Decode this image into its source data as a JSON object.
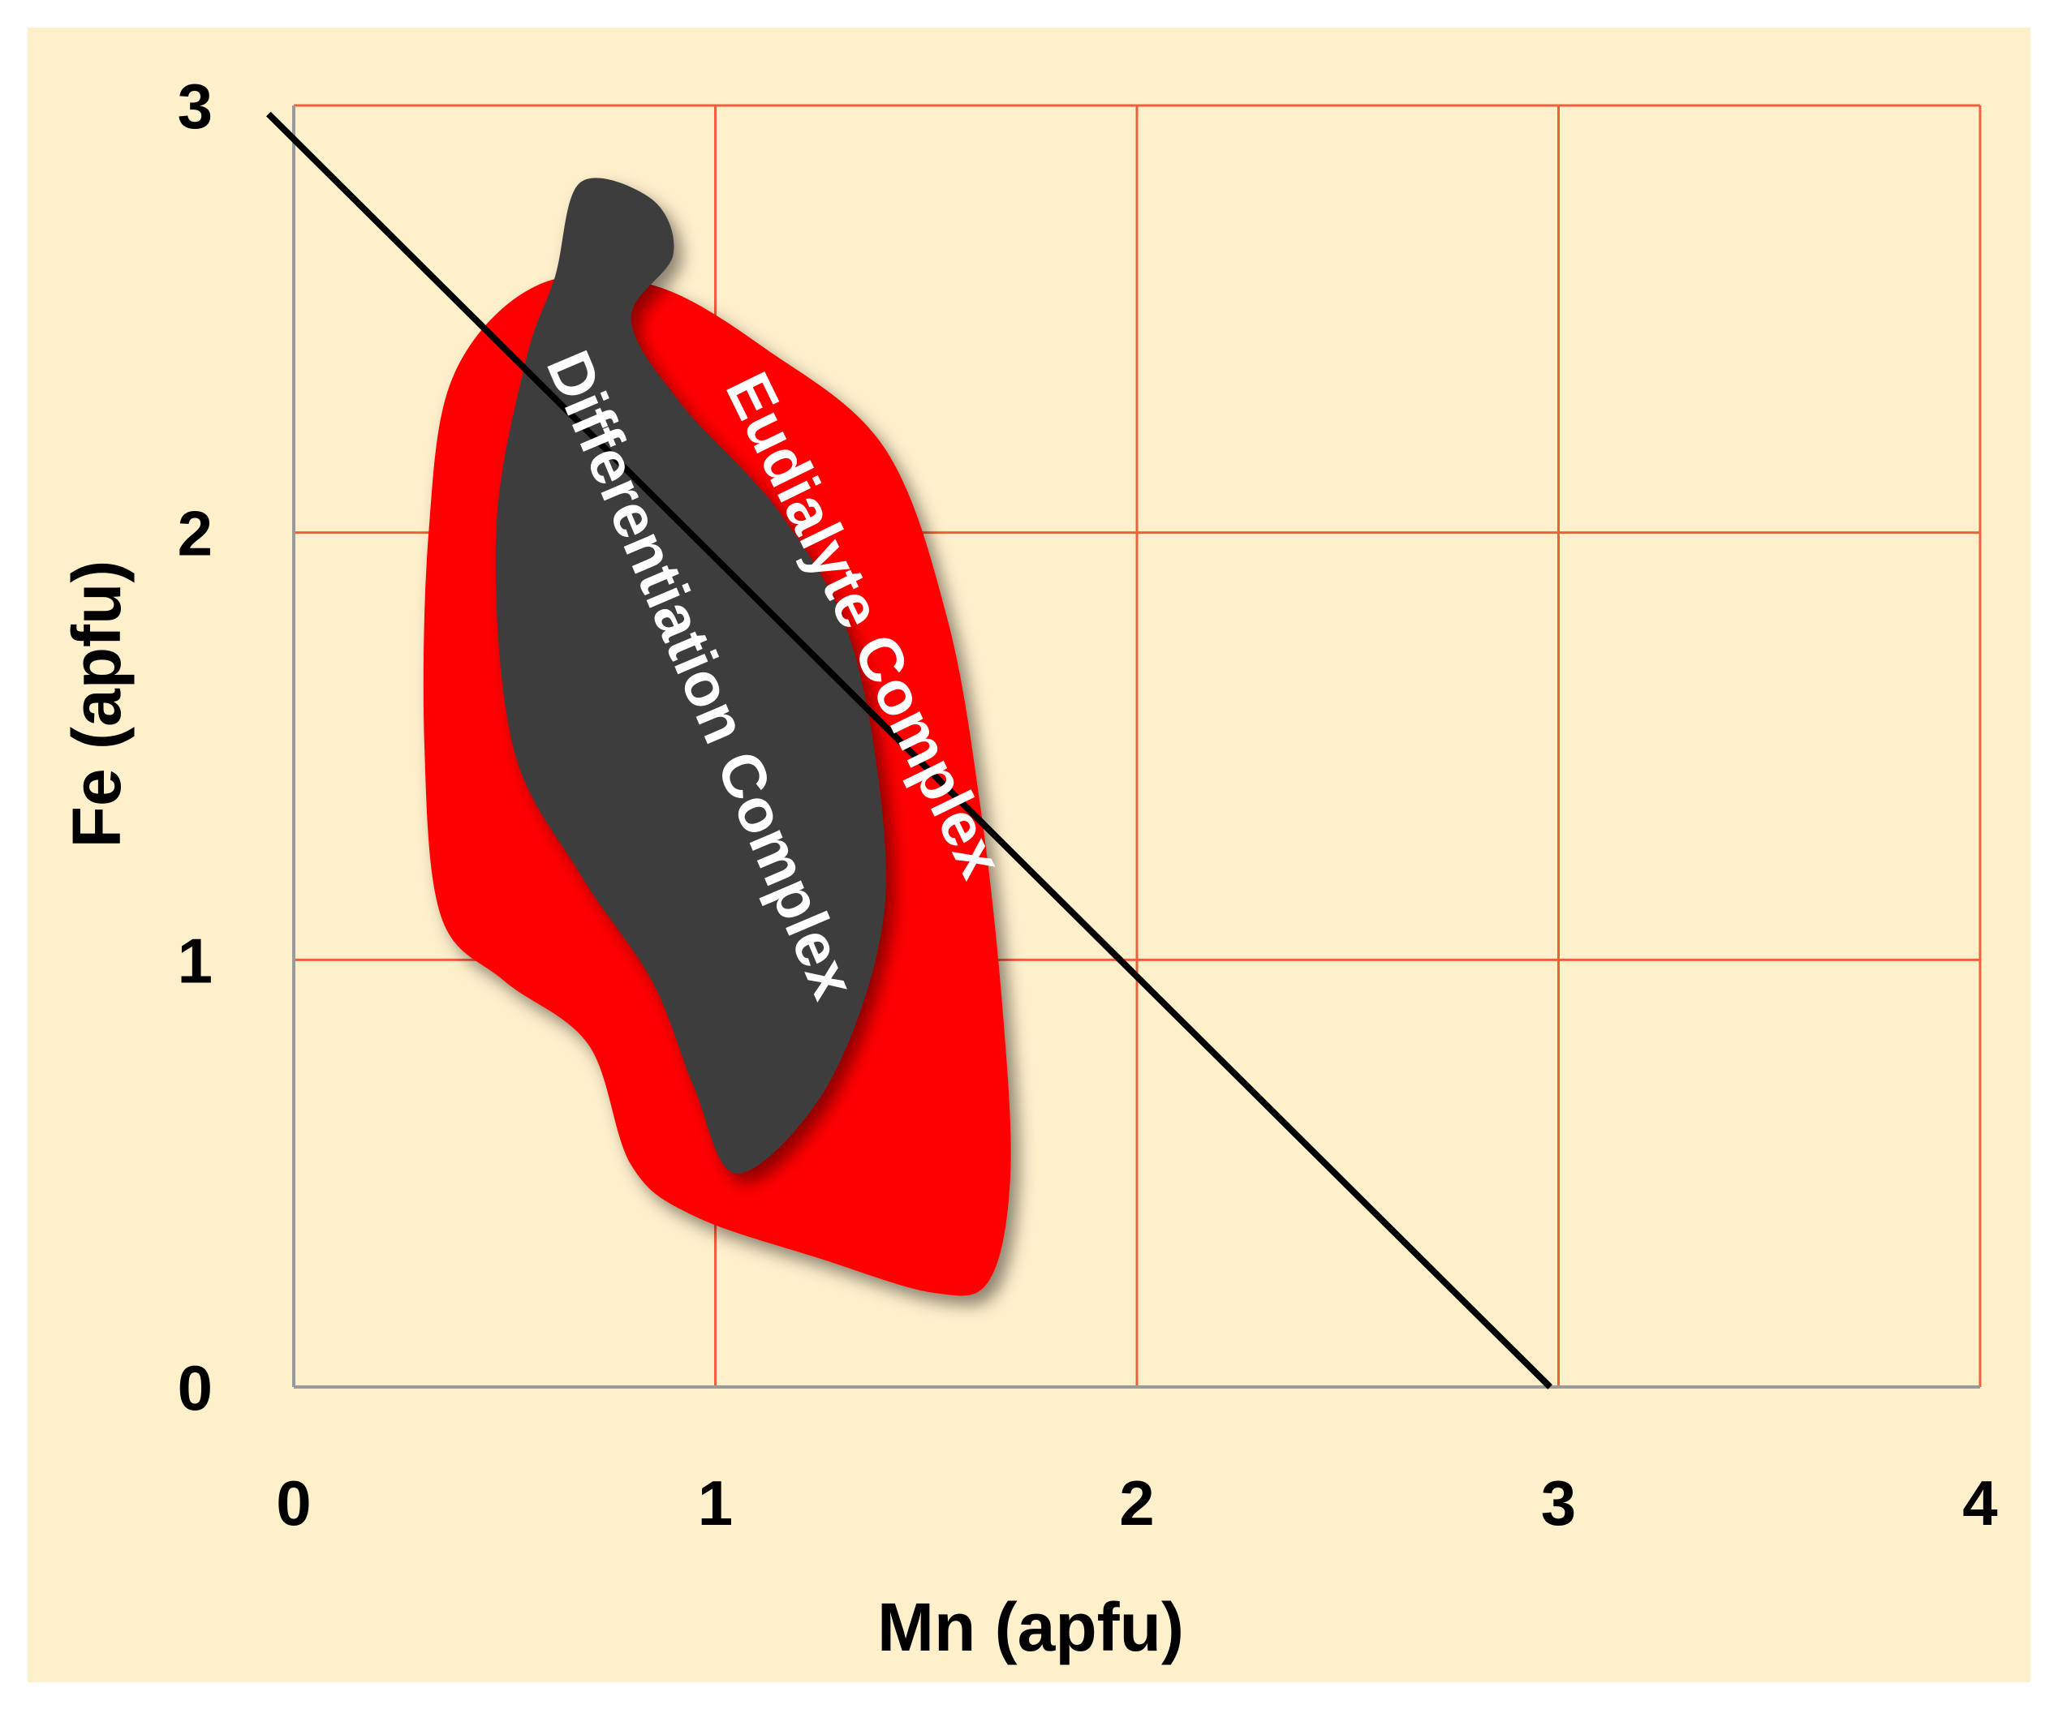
{
  "chart_data": {
    "type": "scatter",
    "title": "",
    "xlabel": "Mn (apfu)",
    "ylabel": "Fe (apfu)",
    "xlim": [
      0,
      4
    ],
    "ylim": [
      0,
      3
    ],
    "xticks": [
      "0",
      "1",
      "2",
      "3",
      "4"
    ],
    "yticks": [
      "0",
      "1",
      "2",
      "3"
    ],
    "grid": true,
    "legend": "none",
    "reference_line": {
      "x": [
        -0.06,
        2.98
      ],
      "y": [
        2.98,
        0
      ]
    },
    "regions": [
      {
        "label": "Eudialyte Complex",
        "color": "#ff0000",
        "outline_mn_fe": [
          [
            0.38,
            2.37
          ],
          [
            0.58,
            2.58
          ],
          [
            0.85,
            2.58
          ],
          [
            1.12,
            2.43
          ],
          [
            1.4,
            2.2
          ],
          [
            1.55,
            1.8
          ],
          [
            1.63,
            1.35
          ],
          [
            1.68,
            0.9
          ],
          [
            1.7,
            0.5
          ],
          [
            1.65,
            0.25
          ],
          [
            1.52,
            0.22
          ],
          [
            1.25,
            0.3
          ],
          [
            0.95,
            0.4
          ],
          [
            0.8,
            0.52
          ],
          [
            0.7,
            0.8
          ],
          [
            0.5,
            0.95
          ],
          [
            0.35,
            1.1
          ],
          [
            0.31,
            1.5
          ],
          [
            0.32,
            2.0
          ]
        ]
      },
      {
        "label": "Differentiation Complex",
        "color": "#3d3d3d",
        "outline_mn_fe": [
          [
            0.62,
            2.6
          ],
          [
            0.68,
            2.82
          ],
          [
            0.85,
            2.78
          ],
          [
            0.9,
            2.65
          ],
          [
            0.8,
            2.5
          ],
          [
            0.92,
            2.3
          ],
          [
            1.15,
            2.05
          ],
          [
            1.32,
            1.75
          ],
          [
            1.4,
            1.3
          ],
          [
            1.38,
            1.0
          ],
          [
            1.25,
            0.68
          ],
          [
            1.05,
            0.5
          ],
          [
            0.95,
            0.7
          ],
          [
            0.85,
            0.95
          ],
          [
            0.68,
            1.2
          ],
          [
            0.52,
            1.5
          ],
          [
            0.48,
            2.0
          ],
          [
            0.55,
            2.4
          ]
        ]
      }
    ]
  },
  "colors": {
    "background": "#fff0cc",
    "grid": "#f0603a",
    "axis": "#9a9a9a",
    "line": "#000000"
  }
}
